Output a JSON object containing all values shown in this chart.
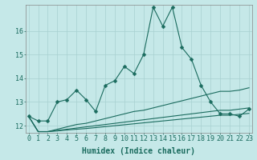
{
  "xlabel": "Humidex (Indice chaleur)",
  "bg_color": "#c5e8e8",
  "grid_color": "#a8d0d0",
  "line_color": "#1a6b5e",
  "x_vals": [
    0,
    1,
    2,
    3,
    4,
    5,
    6,
    7,
    8,
    9,
    10,
    11,
    12,
    13,
    14,
    15,
    16,
    17,
    18,
    19,
    20,
    21,
    22,
    23
  ],
  "main_line": [
    12.4,
    12.2,
    12.2,
    13.0,
    13.1,
    13.5,
    13.1,
    12.6,
    13.7,
    13.9,
    14.5,
    14.2,
    15.0,
    17.0,
    16.2,
    17.0,
    15.3,
    14.8,
    13.7,
    13.0,
    12.5,
    12.5,
    12.4,
    12.7
  ],
  "line2": [
    12.4,
    11.75,
    11.75,
    11.85,
    11.95,
    12.05,
    12.1,
    12.2,
    12.3,
    12.4,
    12.5,
    12.6,
    12.65,
    12.75,
    12.85,
    12.95,
    13.05,
    13.15,
    13.25,
    13.35,
    13.45,
    13.45,
    13.5,
    13.6
  ],
  "line3": [
    12.4,
    11.75,
    11.75,
    11.8,
    11.85,
    11.9,
    11.95,
    12.0,
    12.05,
    12.1,
    12.15,
    12.2,
    12.25,
    12.3,
    12.35,
    12.4,
    12.45,
    12.5,
    12.55,
    12.6,
    12.65,
    12.65,
    12.7,
    12.75
  ],
  "line4": [
    12.4,
    11.75,
    11.75,
    11.78,
    11.82,
    11.85,
    11.88,
    11.92,
    11.96,
    12.0,
    12.04,
    12.08,
    12.12,
    12.16,
    12.2,
    12.24,
    12.28,
    12.32,
    12.36,
    12.4,
    12.44,
    12.44,
    12.48,
    12.52
  ],
  "ylim": [
    11.7,
    17.1
  ],
  "xlim": [
    -0.3,
    23.3
  ],
  "yticks": [
    12,
    13,
    14,
    15,
    16
  ],
  "xticks": [
    0,
    1,
    2,
    3,
    4,
    5,
    6,
    7,
    8,
    9,
    10,
    11,
    12,
    13,
    14,
    15,
    16,
    17,
    18,
    19,
    20,
    21,
    22,
    23
  ],
  "markersize": 2.5,
  "linewidth": 0.8,
  "fontsize_xlabel": 7,
  "fontsize_ticks": 6
}
